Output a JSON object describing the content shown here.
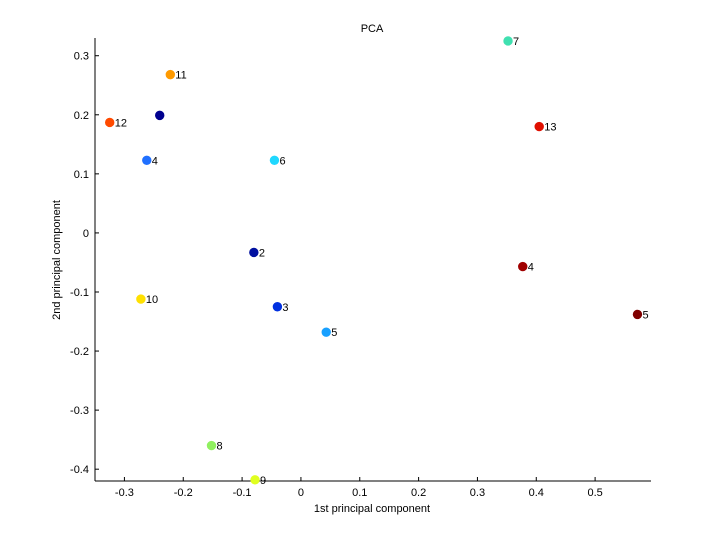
{
  "chart_data": {
    "type": "scatter",
    "title": "PCA",
    "xlabel": "1st principal component",
    "ylabel": "2nd principal component",
    "xlim": [
      -0.35,
      0.595
    ],
    "ylim": [
      -0.42,
      0.33
    ],
    "xticks": [
      -0.3,
      -0.2,
      -0.1,
      0,
      0.1,
      0.2,
      0.3,
      0.4,
      0.5
    ],
    "xtick_labels": [
      "-0.3",
      "-0.2",
      "-0.1",
      "0",
      "0.1",
      "0.2",
      "0.3",
      "0.4",
      "0.5"
    ],
    "yticks": [
      -0.4,
      -0.3,
      -0.2,
      -0.1,
      0,
      0.1,
      0.2,
      0.3
    ],
    "ytick_labels": [
      "-0.4",
      "-0.3",
      "-0.2",
      "-0.1",
      "0",
      "0.1",
      "0.2",
      "0.3"
    ],
    "grid": false,
    "points": [
      {
        "label": "7",
        "x": 0.352,
        "y": 0.325,
        "color": "#40e0b0",
        "show_label": true
      },
      {
        "label": "11",
        "x": -0.222,
        "y": 0.268,
        "color": "#ff9a00",
        "show_label": true
      },
      {
        "label": "12",
        "x": -0.325,
        "y": 0.187,
        "color": "#ff4a00",
        "show_label": true
      },
      {
        "label": "1",
        "x": -0.24,
        "y": 0.199,
        "color": "#00008f",
        "show_label": false
      },
      {
        "label": "13",
        "x": 0.405,
        "y": 0.18,
        "color": "#e01000",
        "show_label": true
      },
      {
        "label": "4",
        "x": -0.262,
        "y": 0.123,
        "color": "#2070ff",
        "show_label": true
      },
      {
        "label": "6",
        "x": -0.045,
        "y": 0.123,
        "color": "#20d8ff",
        "show_label": true
      },
      {
        "label": "2",
        "x": -0.08,
        "y": -0.033,
        "color": "#0010a0",
        "show_label": true
      },
      {
        "label": "4",
        "x": 0.377,
        "y": -0.057,
        "color": "#a00000",
        "show_label": true
      },
      {
        "label": "10",
        "x": -0.272,
        "y": -0.112,
        "color": "#ffe000",
        "show_label": true
      },
      {
        "label": "3",
        "x": -0.04,
        "y": -0.125,
        "color": "#0030e0",
        "show_label": true
      },
      {
        "label": "5",
        "x": 0.572,
        "y": -0.138,
        "color": "#800000",
        "show_label": true
      },
      {
        "label": "5",
        "x": 0.043,
        "y": -0.168,
        "color": "#18a0ff",
        "show_label": true
      },
      {
        "label": "8",
        "x": -0.152,
        "y": -0.36,
        "color": "#90f060",
        "show_label": true
      },
      {
        "label": "9",
        "x": -0.078,
        "y": -0.418,
        "color": "#e0ff20",
        "show_label": true
      }
    ]
  }
}
